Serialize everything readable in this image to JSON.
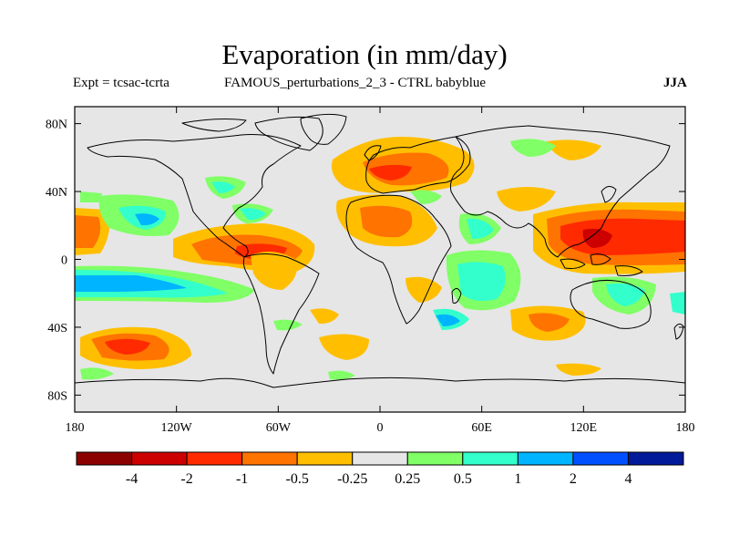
{
  "title": "Evaporation (in mm/day)",
  "subtitle_left": "Expt = tcsac-tcrta",
  "subtitle_center": "FAMOUS_perturbations_2_3 - CTRL babyblue",
  "subtitle_right": "JJA",
  "map": {
    "projection": "cylindrical-equidistant",
    "background_color": "#e6e6e6",
    "lon_range": [
      -180,
      180
    ],
    "lat_range": [
      -90,
      90
    ],
    "lat_ticks": [
      {
        "value": 80,
        "label": "80N"
      },
      {
        "value": 40,
        "label": "40N"
      },
      {
        "value": 0,
        "label": "0"
      },
      {
        "value": -40,
        "label": "40S"
      },
      {
        "value": -80,
        "label": "80S"
      }
    ],
    "lon_ticks": [
      {
        "value": -180,
        "label": "180"
      },
      {
        "value": -120,
        "label": "120W"
      },
      {
        "value": -60,
        "label": "60W"
      },
      {
        "value": 0,
        "label": "0"
      },
      {
        "value": 60,
        "label": "60E"
      },
      {
        "value": 120,
        "label": "120E"
      },
      {
        "value": 180,
        "label": "180"
      }
    ]
  },
  "colorbar": {
    "colors": [
      "#8b0000",
      "#cc0000",
      "#ff2a00",
      "#ff7300",
      "#ffbf00",
      "#e6e6e6",
      "#80ff66",
      "#33ffcc",
      "#00b4ff",
      "#0050ff",
      "#001a99"
    ],
    "labels": [
      "-4",
      "-2",
      "-1",
      "-0.5",
      "-0.25",
      "0.25",
      "0.5",
      "1",
      "2",
      "4"
    ]
  }
}
